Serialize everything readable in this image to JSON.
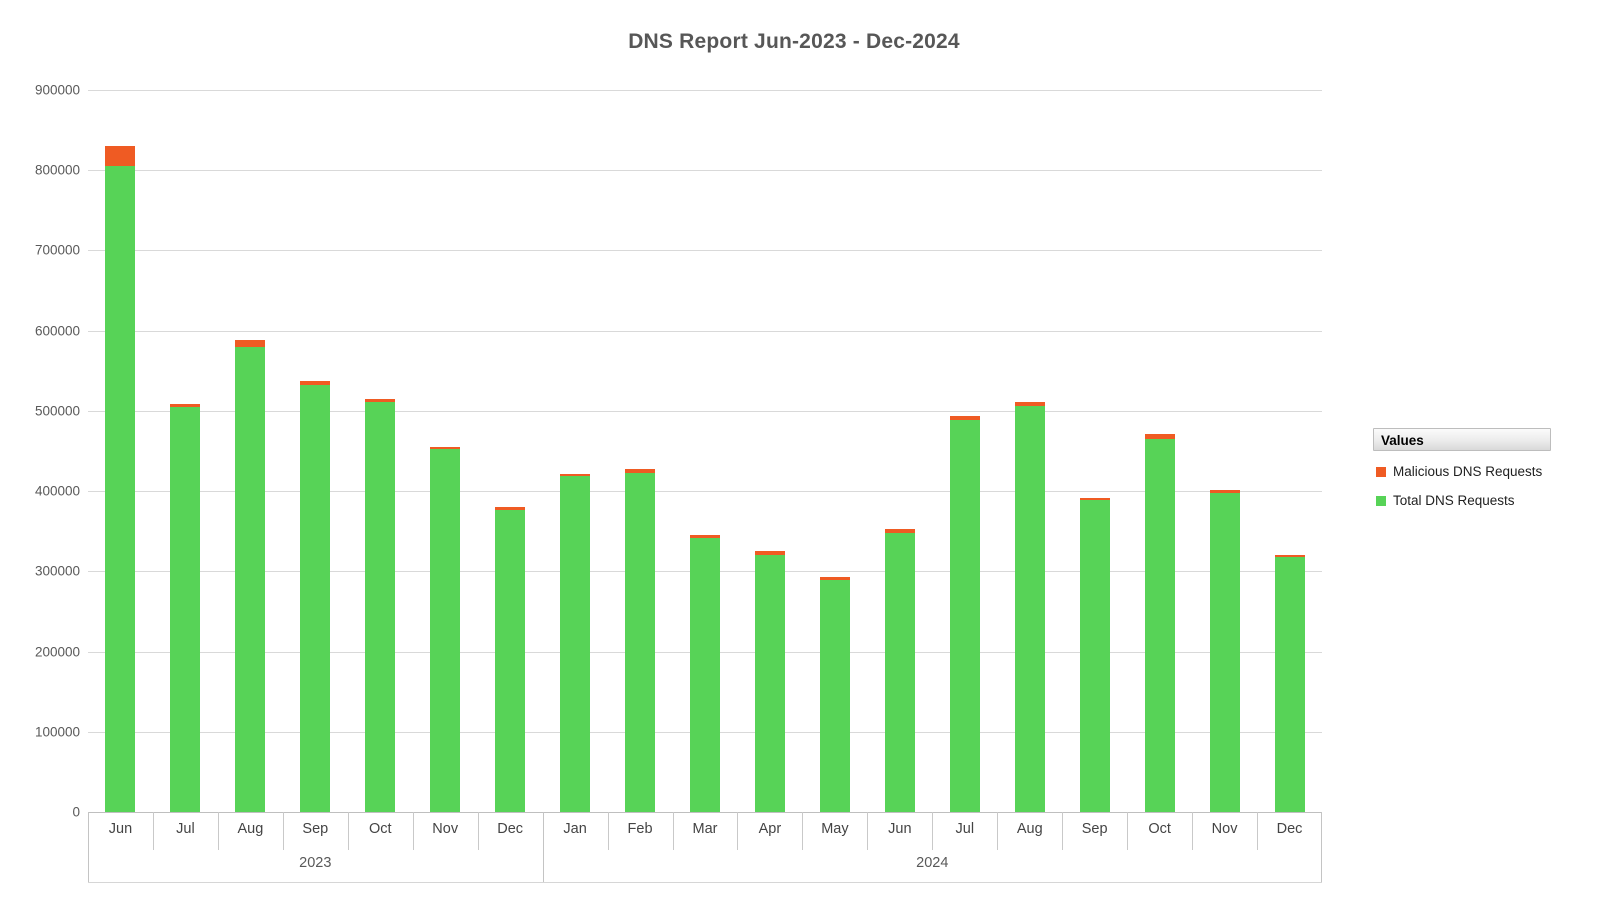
{
  "title": "DNS Report Jun-2023 - Dec-2024",
  "legend": {
    "header": "Values",
    "items": [
      {
        "label": "Malicious DNS Requests",
        "color": "#ef5b23"
      },
      {
        "label": "Total DNS Requests",
        "color": "#57d357"
      }
    ]
  },
  "chart_data": {
    "type": "bar",
    "stacked": true,
    "title": "DNS Report Jun-2023 - Dec-2024",
    "categories": [
      "Jun 2023",
      "Jul 2023",
      "Aug 2023",
      "Sep 2023",
      "Oct 2023",
      "Nov 2023",
      "Dec 2023",
      "Jan 2024",
      "Feb 2024",
      "Mar 2024",
      "Apr 2024",
      "May 2024",
      "Jun 2024",
      "Jul 2024",
      "Aug 2024",
      "Sep 2024",
      "Oct 2024",
      "Nov 2024",
      "Dec 2024"
    ],
    "x_groups": [
      {
        "year": "2023",
        "months": [
          "Jun",
          "Jul",
          "Aug",
          "Sep",
          "Oct",
          "Nov",
          "Dec"
        ]
      },
      {
        "year": "2024",
        "months": [
          "Jan",
          "Feb",
          "Mar",
          "Apr",
          "May",
          "Jun",
          "Jul",
          "Aug",
          "Sep",
          "Oct",
          "Nov",
          "Dec"
        ]
      }
    ],
    "series": [
      {
        "name": "Total DNS Requests",
        "color": "#57d357",
        "values": [
          805000,
          505000,
          580000,
          532000,
          511000,
          452000,
          376000,
          419000,
          423000,
          342000,
          320000,
          289000,
          348000,
          489000,
          506000,
          389000,
          465000,
          398000,
          318000
        ]
      },
      {
        "name": "Malicious DNS Requests",
        "color": "#ef5b23",
        "values": [
          25000,
          3000,
          8000,
          5000,
          4000,
          3000,
          4000,
          2000,
          5000,
          3000,
          5000,
          4000,
          5000,
          5000,
          5000,
          2000,
          6000,
          3000,
          2000
        ]
      }
    ],
    "xlabel": "",
    "ylabel": "",
    "ylim": [
      0,
      900000
    ],
    "y_tick_step": 100000,
    "grid": true,
    "legend_position": "right",
    "legend_title": "Values"
  },
  "colors": {
    "grid": "#d9d9d9",
    "axis": "#bfbfbf",
    "title_text": "#575757",
    "tick_text": "#595959",
    "total_green": "#57d357",
    "malicious_orange": "#ef5b23"
  }
}
